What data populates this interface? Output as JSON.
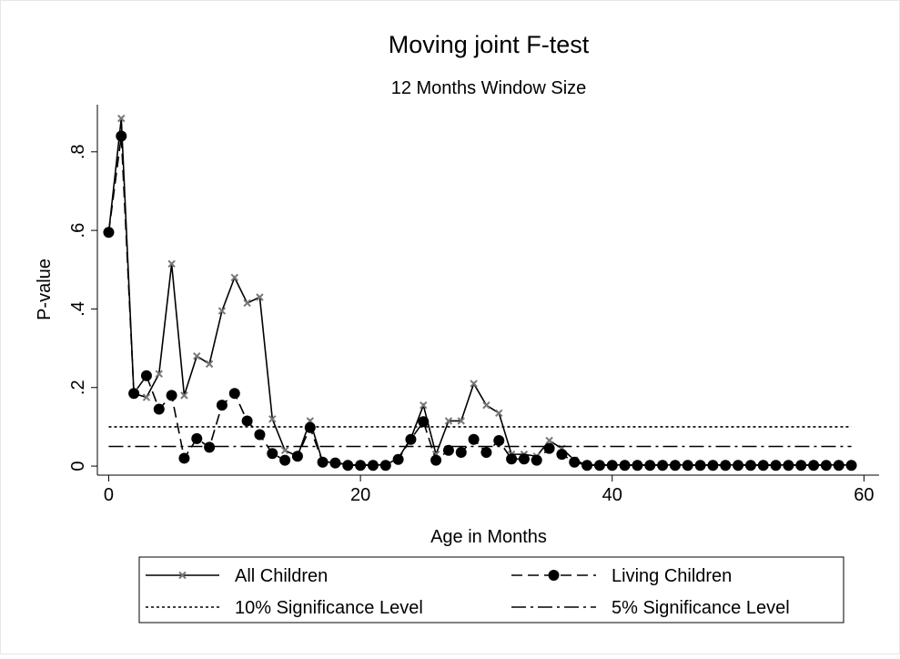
{
  "chart_data": {
    "type": "line",
    "title": "Moving joint F-test",
    "subtitle": "12 Months Window Size",
    "x_label": "Age in Months",
    "y_label": "P-value",
    "x": [
      0,
      1,
      2,
      3,
      4,
      5,
      6,
      7,
      8,
      9,
      10,
      11,
      12,
      13,
      14,
      15,
      16,
      17,
      18,
      19,
      20,
      21,
      22,
      23,
      24,
      25,
      26,
      27,
      28,
      29,
      30,
      31,
      32,
      33,
      34,
      35,
      36,
      37,
      38,
      39,
      40,
      41,
      42,
      43,
      44,
      45,
      46,
      47,
      48,
      49,
      50,
      51,
      52,
      53,
      54,
      55,
      56,
      57,
      58,
      59
    ],
    "series": [
      {
        "name": "All Children",
        "color": "#000000",
        "style": "solid",
        "marker": "x",
        "marker_color": "#777777",
        "values": [
          0.595,
          0.885,
          0.185,
          0.175,
          0.235,
          0.515,
          0.18,
          0.28,
          0.26,
          0.395,
          0.48,
          0.415,
          0.43,
          0.12,
          0.04,
          0.025,
          0.115,
          0.01,
          0.01,
          0.003,
          0.003,
          0.003,
          0.003,
          0.02,
          0.07,
          0.155,
          0.03,
          0.115,
          0.115,
          0.21,
          0.155,
          0.135,
          0.03,
          0.03,
          0.025,
          0.065,
          0.045,
          0.015,
          0.003,
          0.003,
          0.003,
          0.003,
          0.003,
          0.003,
          0.003,
          0.003,
          0.003,
          0.003,
          0.003,
          0.003,
          0.003,
          0.003,
          0.003,
          0.003,
          0.003,
          0.003,
          0.003,
          0.003,
          0.003,
          0.003
        ]
      },
      {
        "name": "Living Children",
        "color": "#000000",
        "style": "dash",
        "marker": "circle",
        "marker_color": "#000000",
        "values": [
          0.595,
          0.84,
          0.185,
          0.23,
          0.145,
          0.18,
          0.02,
          0.07,
          0.048,
          0.155,
          0.185,
          0.115,
          0.08,
          0.032,
          0.015,
          0.025,
          0.098,
          0.01,
          0.008,
          0.002,
          0.002,
          0.002,
          0.002,
          0.017,
          0.068,
          0.113,
          0.015,
          0.04,
          0.035,
          0.068,
          0.035,
          0.065,
          0.018,
          0.018,
          0.015,
          0.045,
          0.03,
          0.01,
          0.002,
          0.002,
          0.002,
          0.002,
          0.002,
          0.002,
          0.002,
          0.002,
          0.002,
          0.002,
          0.002,
          0.002,
          0.002,
          0.002,
          0.002,
          0.002,
          0.002,
          0.002,
          0.002,
          0.002,
          0.002,
          0.002
        ]
      },
      {
        "name": "10% Significance Level",
        "color": "#000000",
        "style": "dot",
        "value": 0.1
      },
      {
        "name": "5% Significance Level",
        "color": "#000000",
        "style": "dashdot",
        "value": 0.05
      }
    ],
    "xlim": [
      -0.9,
      61.2
    ],
    "ylim": [
      -0.023,
      0.92
    ],
    "xticks": [
      0,
      20,
      40,
      60
    ],
    "yticks": [
      0,
      {
        "value": 0.2,
        "label": ".2"
      },
      {
        "value": 0.4,
        "label": ".4"
      },
      {
        "value": 0.6,
        "label": ".6"
      },
      {
        "value": 0.8,
        "label": ".8"
      }
    ],
    "grid": false,
    "legend": "bottom"
  }
}
